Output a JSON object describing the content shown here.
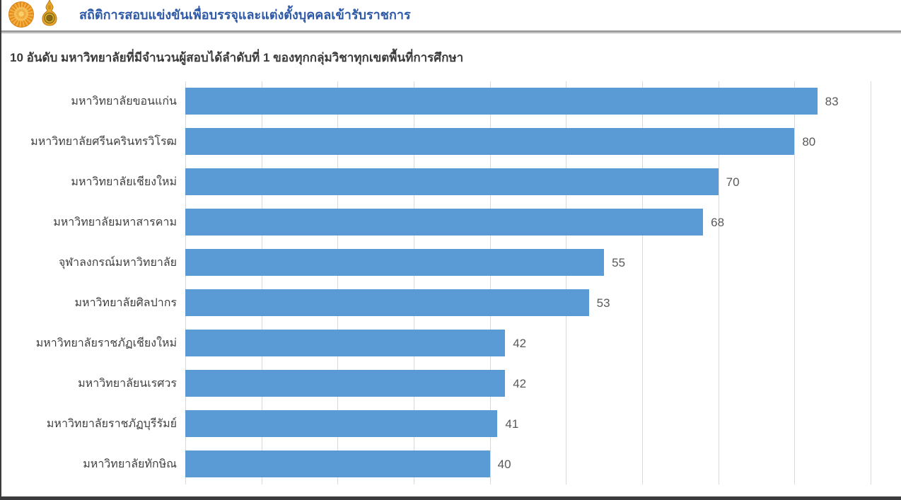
{
  "header": {
    "title": "สถิติการสอบแข่งขันเพื่อบรรจุและแต่งตั้งบุคคลเข้ารับราชการ",
    "logos": [
      "royal-seal-emblem-icon",
      "obec-emblem-icon"
    ]
  },
  "colors": {
    "bar": "#5b9bd5",
    "gridline": "#d9d9d9",
    "header_text": "#2e5aa8",
    "category_text": "#3f3f3f",
    "value_text": "#595959",
    "page_border": "#3b3b3d"
  },
  "chart_data": {
    "type": "bar",
    "orientation": "horizontal",
    "title": "10 อันดับ มหาวิทยาลัยที่มีจำนวนผู้สอบได้ลำดับที่ 1 ของทุกกลุ่มวิชาทุกเขตพื้นที่การศึกษา",
    "categories": [
      "มหาวิทยาลัยขอนแก่น",
      "มหาวิทยาลัยศรีนครินทรวิโรฒ",
      "มหาวิทยาลัยเชียงใหม่",
      "มหาวิทยาลัยมหาสารคาม",
      "จุฬาลงกรณ์มหาวิทยาลัย",
      "มหาวิทยาลัยศิลปากร",
      "มหาวิทยาลัยราชภัฏเชียงใหม่",
      "มหาวิทยาลัยนเรศวร",
      "มหาวิทยาลัยราชภัฏบุรีรัมย์",
      "มหาวิทยาลัยทักษิณ"
    ],
    "values": [
      83,
      80,
      70,
      68,
      55,
      53,
      42,
      42,
      41,
      40
    ],
    "xlabel": "",
    "ylabel": "",
    "xlim": [
      0,
      90
    ],
    "gridline_interval": 10,
    "grid": true,
    "legend": false,
    "value_labels": true,
    "bar_color": "#5b9bd5"
  }
}
